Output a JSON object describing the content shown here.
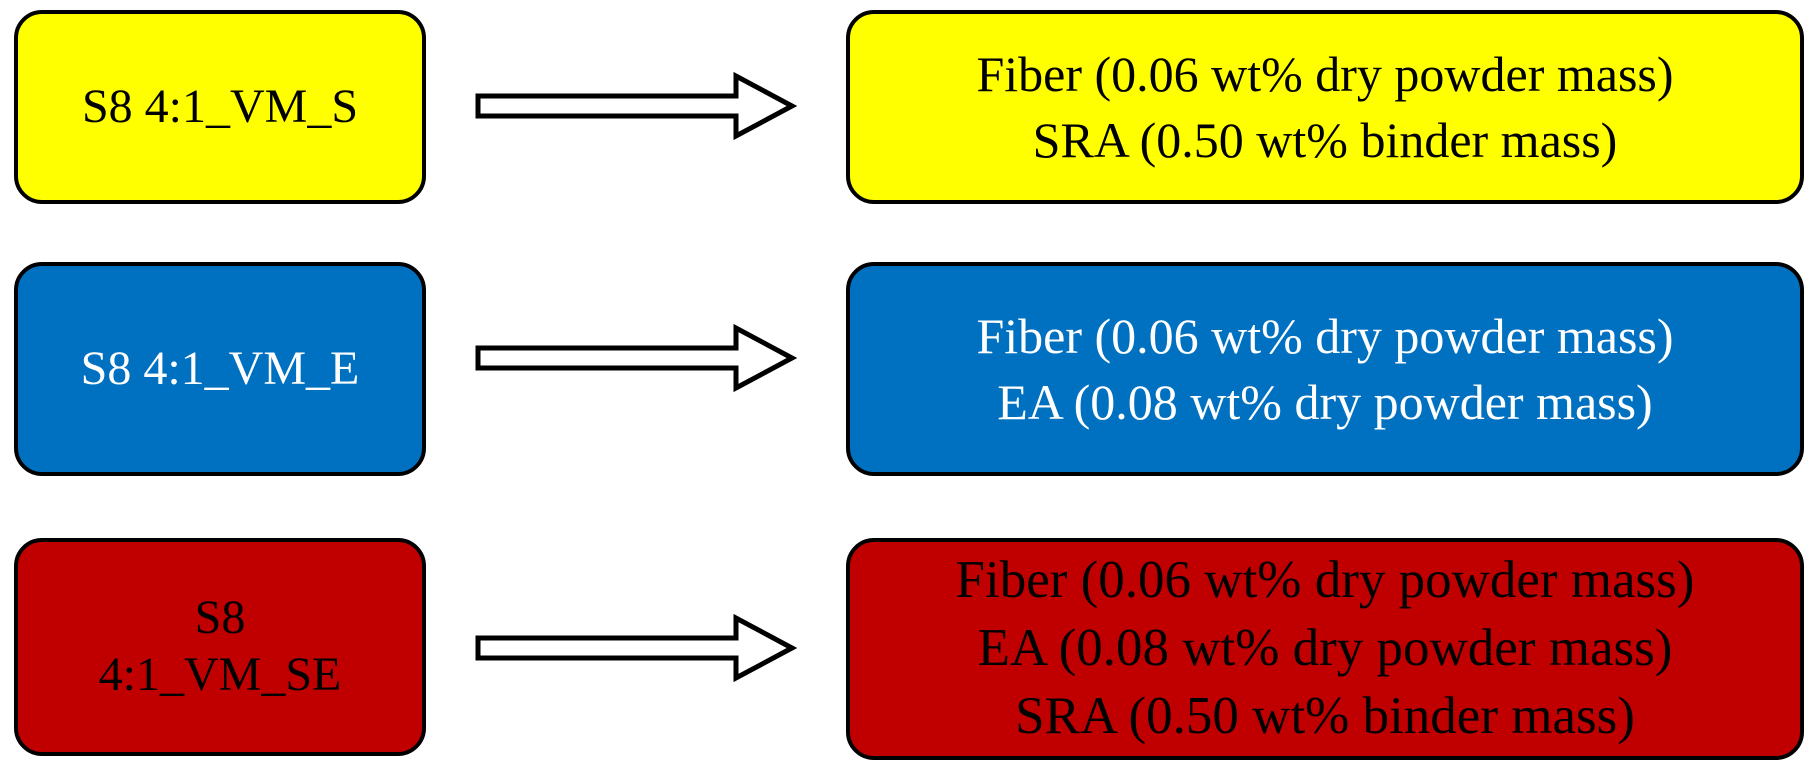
{
  "rows": [
    {
      "left": {
        "label": "S8 4:1_VM_S"
      },
      "right": {
        "lines": [
          "Fiber (0.06 wt% dry powder mass)",
          "SRA (0.50 wt% binder mass)"
        ]
      },
      "color": "#ffff00"
    },
    {
      "left": {
        "label": "S8 4:1_VM_E"
      },
      "right": {
        "lines": [
          "Fiber (0.06 wt% dry powder mass)",
          "EA (0.08 wt% dry powder mass)"
        ]
      },
      "color": "#0070c0"
    },
    {
      "left": {
        "label_lines": [
          "S8",
          "4:1_VM_SE"
        ]
      },
      "right": {
        "lines": [
          "Fiber (0.06 wt% dry powder mass)",
          "EA (0.08 wt% dry powder mass)",
          "SRA (0.50 wt% binder mass)"
        ]
      },
      "color": "#c00000"
    }
  ]
}
